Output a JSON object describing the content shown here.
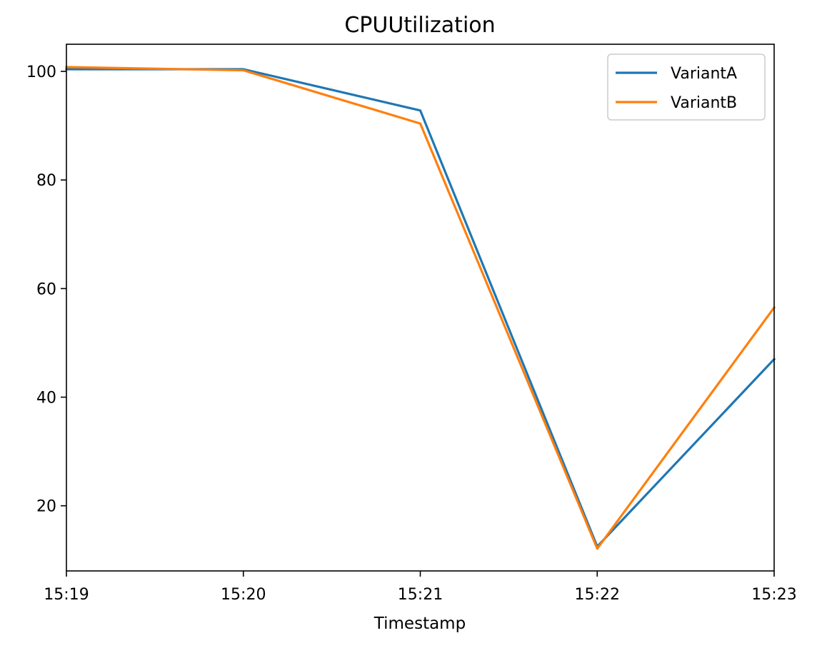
{
  "chart_data": {
    "type": "line",
    "title": "CPUUtilization",
    "xlabel": "Timestamp",
    "ylabel": "",
    "categories": [
      "15:19",
      "15:20",
      "15:21",
      "15:22",
      "15:23"
    ],
    "ylim": [
      8,
      105
    ],
    "yticks": [
      20,
      40,
      60,
      80,
      100
    ],
    "grid": false,
    "legend_position": "top-right",
    "series": [
      {
        "name": "VariantA",
        "color": "#1f77b4",
        "values": [
          100.4,
          100.4,
          92.8,
          12.5,
          47.0
        ]
      },
      {
        "name": "VariantB",
        "color": "#ff7f0e",
        "values": [
          100.8,
          100.2,
          90.4,
          12.1,
          56.5
        ]
      }
    ]
  }
}
